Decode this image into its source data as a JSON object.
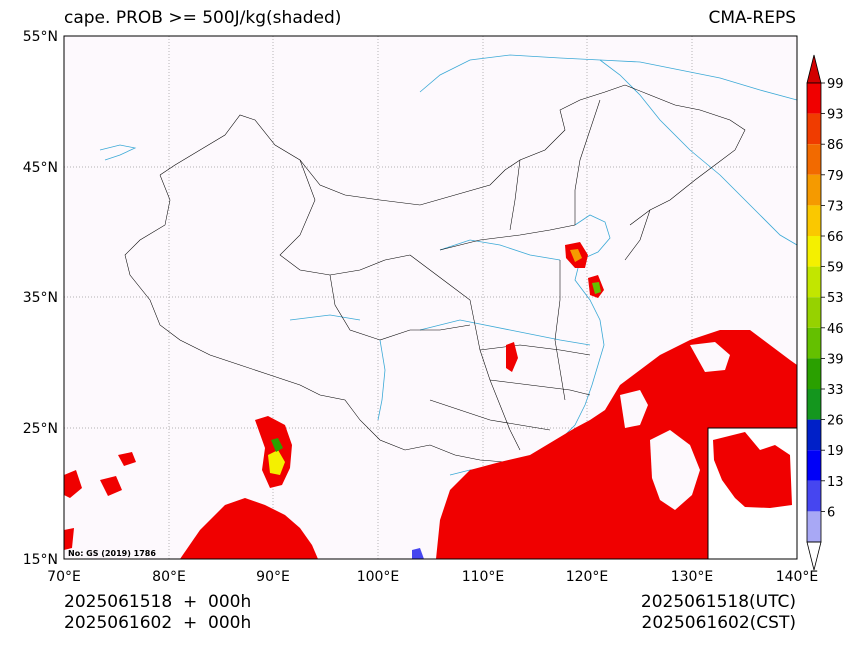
{
  "header": {
    "title": "cape. PROB >= 500J/kg(shaded)",
    "model": "CMA-REPS"
  },
  "map": {
    "lat_labels": [
      "55°N",
      "45°N",
      "35°N",
      "25°N",
      "15°N"
    ],
    "lon_labels": [
      "70°E",
      "80°E",
      "90°E",
      "100°E",
      "110°E",
      "120°E",
      "130°E",
      "140°E"
    ],
    "credit": "No: GS (2019) 1786",
    "land_fill": "#fdf9fd",
    "coast_color": "#3ba9d6",
    "border_color": "#000000"
  },
  "colorbar": {
    "labels": [
      "99",
      "93",
      "86",
      "79",
      "73",
      "66",
      "59",
      "53",
      "46",
      "39",
      "33",
      "26",
      "19",
      "13",
      "6"
    ],
    "colors": [
      "#f00000",
      "#f03c00",
      "#f26a00",
      "#f59a00",
      "#fac800",
      "#f4f000",
      "#c2e600",
      "#96d200",
      "#64c000",
      "#2aa000",
      "#14961e",
      "#0020c8",
      "#0000f8",
      "#4646f0",
      "#a8a8f5"
    ]
  },
  "footer": {
    "init_utc": "2025061518  +  000h",
    "init_cst": "2025061602  +  000h",
    "valid_utc": "2025061518(UTC)",
    "valid_cst": "2025061602(CST)"
  }
}
